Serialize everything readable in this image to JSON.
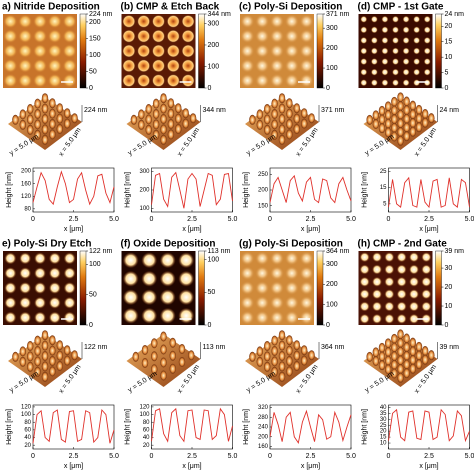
{
  "profile_x": [
    0,
    0.25,
    0.5,
    0.75,
    1,
    1.25,
    1.5,
    1.75,
    2,
    2.25,
    2.5,
    2.75,
    3,
    3.25,
    3.5,
    3.75,
    4,
    4.25,
    4.5,
    4.75,
    5
  ],
  "panels": [
    {
      "title": "a) Nitride Deposition",
      "colorbar": {
        "lim": [
          0,
          224
        ],
        "ticks": [
          0,
          50,
          100,
          150,
          200,
          {
            "value": 224,
            "label": "224 nm"
          }
        ]
      },
      "surface": {
        "height_label": "224 nm",
        "y_label": "y = 5.0 μm",
        "x_label": "x = 5.0 μm"
      },
      "profile": {
        "type": "line",
        "color": "#e0302a",
        "ylabel": "Height [nm]",
        "xlabel": "x [μm]",
        "xlim": [
          0,
          5
        ],
        "xticks": [
          0,
          2.5,
          {
            "value": 5,
            "label": "5.0"
          }
        ],
        "ylim": [
          70,
          210
        ],
        "yticks": [
          80,
          120,
          160,
          200
        ],
        "values": [
          100,
          150,
          195,
          170,
          110,
          95,
          150,
          198,
          160,
          100,
          110,
          175,
          195,
          140,
          95,
          120,
          185,
          190,
          130,
          100,
          150
        ]
      }
    },
    {
      "title": "(b) CMP & Etch Back",
      "colorbar": {
        "lim": [
          0,
          344
        ],
        "ticks": [
          0,
          100,
          200,
          300,
          {
            "value": 344,
            "label": "344 nm"
          }
        ]
      },
      "surface": {
        "height_label": "344 nm",
        "y_label": "y = 5.0 μm",
        "x_label": "x = 5.0 μm"
      },
      "profile": {
        "type": "line",
        "color": "#e0302a",
        "ylabel": "Height [nm]",
        "xlabel": "x [μm]",
        "xlim": [
          0,
          5
        ],
        "xticks": [
          0,
          2.5,
          {
            "value": 5,
            "label": "5.0"
          }
        ],
        "ylim": [
          80,
          320
        ],
        "yticks": [
          100,
          200,
          300
        ],
        "values": [
          120,
          280,
          290,
          150,
          110,
          270,
          295,
          200,
          100,
          260,
          290,
          260,
          110,
          200,
          290,
          280,
          120,
          150,
          285,
          290,
          140
        ]
      }
    },
    {
      "title": "(c) Poly-Si Deposition",
      "colorbar": {
        "lim": [
          0,
          371
        ],
        "ticks": [
          0,
          100,
          200,
          300,
          {
            "value": 371,
            "label": "371 nm"
          }
        ]
      },
      "surface": {
        "height_label": "371 nm",
        "y_label": "y = 5.0 μm",
        "x_label": "x = 5.0 μm"
      },
      "profile": {
        "type": "line",
        "color": "#e0302a",
        "ylabel": "Height [nm]",
        "xlabel": "x [μm]",
        "xlim": [
          0,
          5
        ],
        "xticks": [
          0,
          2.5,
          {
            "value": 5,
            "label": "5.0"
          }
        ],
        "ylim": [
          130,
          270
        ],
        "yticks": [
          150,
          200,
          250
        ],
        "values": [
          160,
          220,
          240,
          200,
          160,
          230,
          245,
          190,
          165,
          225,
          240,
          170,
          160,
          235,
          230,
          175,
          160,
          220,
          240,
          200,
          165
        ]
      }
    },
    {
      "title": "(d) CMP - 1st Gate",
      "colorbar": {
        "lim": [
          0,
          24
        ],
        "ticks": [
          0,
          5,
          10,
          15,
          20,
          {
            "value": 24,
            "label": "24 nm"
          }
        ]
      },
      "surface": {
        "height_label": "24 nm",
        "y_label": "y = 5.0 μm",
        "x_label": "x = 5.0 μm"
      },
      "profile": {
        "type": "line",
        "color": "#e0302a",
        "ylabel": "Height [nm]",
        "xlabel": "x [μm]",
        "xlim": [
          0,
          5
        ],
        "xticks": [
          0,
          2.5,
          {
            "value": 5,
            "label": "5.0"
          }
        ],
        "ylim": [
          0,
          27
        ],
        "yticks": [
          5,
          15,
          25
        ],
        "values": [
          3,
          20,
          5,
          3,
          18,
          21,
          4,
          3,
          20,
          6,
          3,
          19,
          20,
          3,
          4,
          21,
          5,
          3,
          20,
          18,
          3
        ]
      }
    },
    {
      "title": "e) Poly-Si Dry Etch",
      "colorbar": {
        "lim": [
          0,
          122
        ],
        "ticks": [
          0,
          50,
          100,
          {
            "value": 122,
            "label": "122 nm"
          }
        ]
      },
      "surface": {
        "height_label": "122 nm",
        "y_label": "y = 5.0 μm",
        "x_label": "x = 5.0 μm"
      },
      "profile": {
        "type": "line",
        "color": "#e0302a",
        "ylabel": "Height [nm]",
        "xlabel": "x [μm]",
        "xlim": [
          0,
          5
        ],
        "xticks": [
          0,
          2.5,
          {
            "value": 5,
            "label": "5.0"
          }
        ],
        "ylim": [
          10,
          125
        ],
        "yticks": [
          20,
          40,
          60,
          80,
          100,
          120
        ],
        "values": [
          25,
          100,
          110,
          40,
          30,
          105,
          112,
          35,
          28,
          108,
          110,
          30,
          35,
          110,
          105,
          28,
          40,
          112,
          100,
          25,
          60
        ]
      }
    },
    {
      "title": "(f) Oxide Deposition",
      "colorbar": {
        "lim": [
          0,
          113
        ],
        "ticks": [
          0,
          50,
          100,
          {
            "value": 113,
            "label": "113 nm"
          }
        ]
      },
      "surface": {
        "height_label": "113 nm",
        "y_label": "y = 5.0 μm",
        "x_label": "x = 5.0 μm"
      },
      "profile": {
        "type": "line",
        "color": "#e0302a",
        "ylabel": "Height [nm]",
        "xlabel": "x [μm]",
        "xlim": [
          0,
          5
        ],
        "xticks": [
          0,
          2.5,
          {
            "value": 5,
            "label": "5.0"
          }
        ],
        "ylim": [
          10,
          125
        ],
        "yticks": [
          20,
          40,
          60,
          80,
          100,
          120
        ],
        "values": [
          30,
          110,
          115,
          50,
          30,
          105,
          115,
          45,
          30,
          110,
          112,
          40,
          35,
          112,
          110,
          35,
          45,
          115,
          100,
          30,
          70
        ]
      }
    },
    {
      "title": "(g) Poly-Si Deposition",
      "colorbar": {
        "lim": [
          0,
          364
        ],
        "ticks": [
          0,
          100,
          200,
          300,
          {
            "value": 364,
            "label": "364 nm"
          }
        ]
      },
      "surface": {
        "height_label": "364 nm",
        "y_label": "y = 5.0 μm",
        "x_label": "x = 5.0 μm"
      },
      "profile": {
        "type": "line",
        "color": "#e0302a",
        "ylabel": "Height [nm]",
        "xlabel": "x [μm]",
        "xlim": [
          0,
          5
        ],
        "xticks": [
          0,
          2.5,
          {
            "value": 5,
            "label": "5.0"
          }
        ],
        "ylim": [
          150,
          330
        ],
        "yticks": [
          160,
          200,
          240,
          280,
          320
        ],
        "values": [
          200,
          300,
          250,
          180,
          280,
          300,
          200,
          175,
          260,
          305,
          240,
          180,
          290,
          270,
          190,
          200,
          300,
          260,
          185,
          240,
          290
        ]
      }
    },
    {
      "title": "(h) CMP - 2nd Gate",
      "colorbar": {
        "lim": [
          0,
          39
        ],
        "ticks": [
          0,
          10,
          20,
          30,
          {
            "value": 39,
            "label": "39 nm"
          }
        ]
      },
      "surface": {
        "height_label": "39 nm",
        "y_label": "y = 5.0 μm",
        "x_label": "x = 5.0 μm"
      },
      "profile": {
        "type": "line",
        "color": "#e0302a",
        "ylabel": "Height [nm]",
        "xlabel": "x [μm]",
        "xlim": [
          0,
          5
        ],
        "xticks": [
          0,
          2.5,
          {
            "value": 5,
            "label": "5.0"
          }
        ],
        "ylim": [
          5,
          42
        ],
        "yticks": [
          10,
          15,
          20,
          25,
          30,
          35,
          40
        ],
        "values": [
          12,
          35,
          38,
          15,
          12,
          36,
          37,
          14,
          13,
          37,
          36,
          13,
          15,
          38,
          34,
          12,
          16,
          37,
          33,
          12,
          20
        ]
      }
    }
  ]
}
